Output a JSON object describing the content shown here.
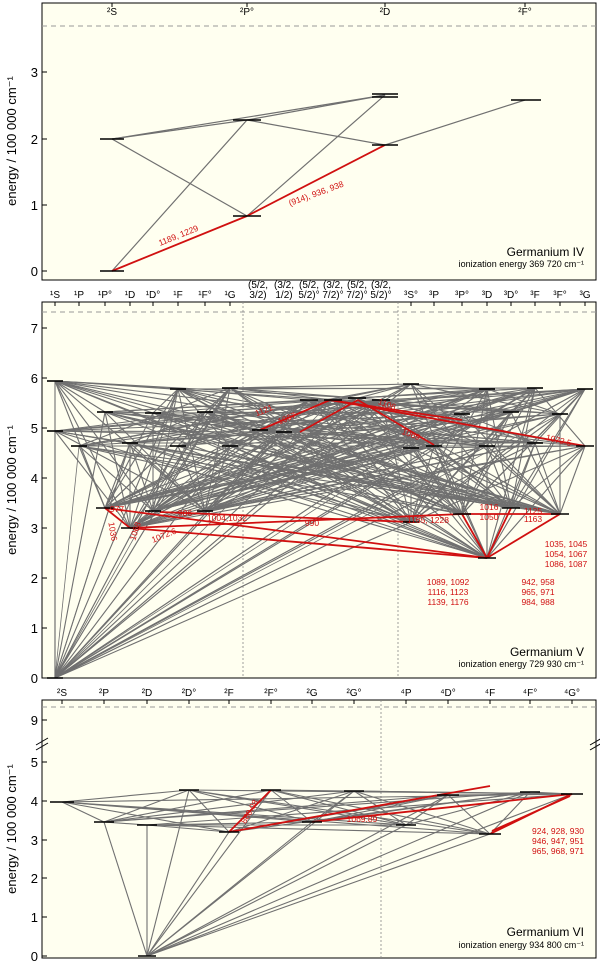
{
  "y_axis_label": "energy / 100 000 cm⁻¹",
  "colors": {
    "panel_bg": "#fffff0",
    "gray_line": "#707070",
    "red_line": "#d01010",
    "level": "#000000"
  },
  "panels": [
    {
      "ion": "Germanium IV",
      "ionization": "ionization energy  369 720  cm⁻¹",
      "y_ticks": [
        "0",
        "1",
        "2",
        "3"
      ],
      "terms": [
        "²S",
        "²P°",
        "²D",
        "²F°"
      ],
      "labels": [
        "1189, 1229",
        "(914), 936, 938"
      ]
    },
    {
      "ion": "Germanium V",
      "ionization": "ionization energy  729 930  cm⁻¹",
      "y_ticks": [
        "0",
        "1",
        "2",
        "3",
        "4",
        "5",
        "6",
        "7"
      ],
      "terms": [
        "¹S",
        "¹P",
        "¹P°",
        "¹D",
        "¹D°",
        "¹F",
        "¹F°",
        "¹G",
        "³S°",
        "³P",
        "³P°",
        "³D",
        "³D°",
        "³F",
        "³F°",
        "³G"
      ],
      "jj_terms": [
        [
          "(5/2,",
          "3/2)"
        ],
        [
          "(3/2,",
          "1/2)"
        ],
        [
          "(5/2,",
          "5/2)°"
        ],
        [
          "(3/2,",
          "7/2)°"
        ],
        [
          "(5/2,",
          "7/2)°"
        ],
        [
          "(3/2,",
          "5/2)°"
        ]
      ],
      "labels": [
        "1121",
        "1097",
        "1106",
        "1069",
        "1072.5",
        "977",
        "986",
        "1004,1032",
        "990",
        "1036",
        "1068",
        "1072.6",
        "1165, 1228",
        "1016",
        "1050",
        "1125",
        "1163",
        "1089, 1092",
        "1116, 1123",
        "1139, 1176",
        "942, 958",
        "965, 971",
        "984, 988",
        "1035, 1045",
        "1054, 1067",
        "1086, 1087"
      ]
    },
    {
      "ion": "Germanium VI",
      "ionization": "ionization energy  934 800  cm⁻¹",
      "y_ticks": [
        "0",
        "1",
        "2",
        "3",
        "4",
        "5",
        "9"
      ],
      "terms": [
        "²S",
        "²P",
        "²D",
        "²D°",
        "²F",
        "²F°",
        "²G",
        "²G°",
        "⁴P",
        "⁴D°",
        "⁴F",
        "⁴F°",
        "⁴G°"
      ],
      "labels": [
        "880.08",
        "1069.89",
        "924, 928, 930",
        "946, 947, 951",
        "965, 968, 971"
      ]
    }
  ]
}
